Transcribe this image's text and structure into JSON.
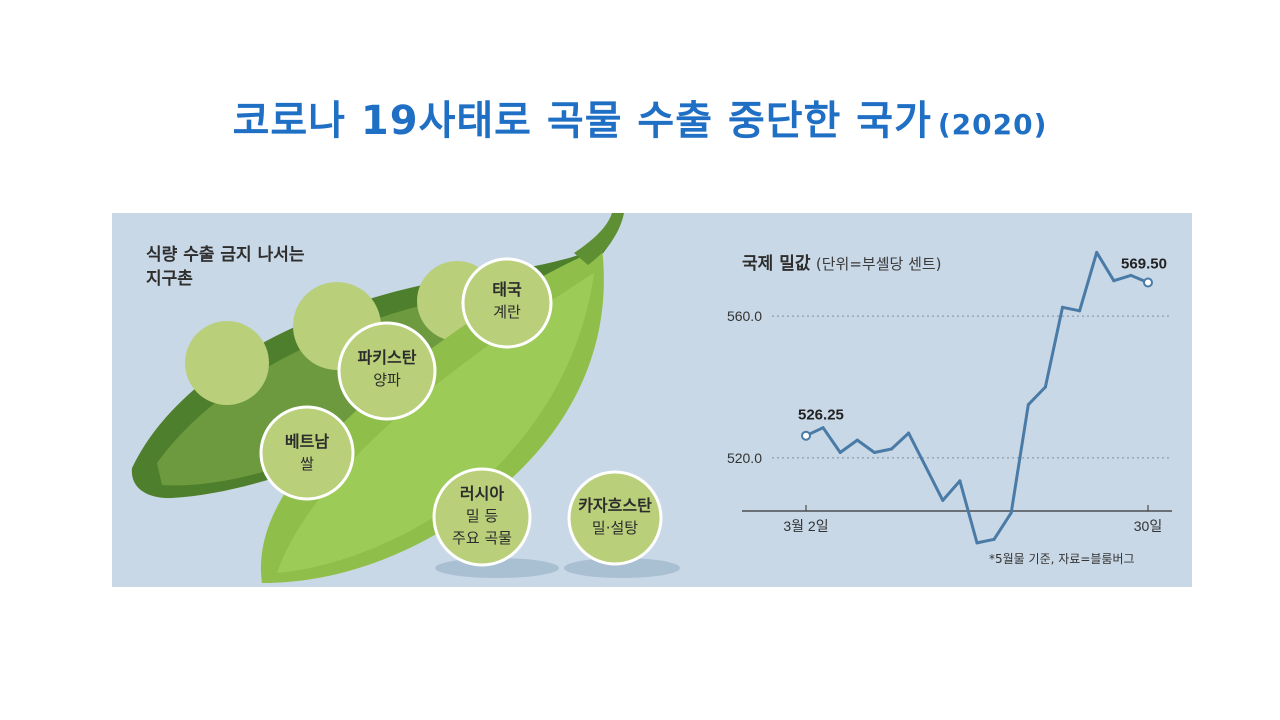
{
  "page": {
    "title": "코로나 19사태로 곡물 수출 중단한 국가",
    "title_year": "(2020)"
  },
  "left": {
    "subtitle_line1": "식량 수출 금지 나서는",
    "subtitle_line2": "지구촌",
    "peas": [
      {
        "country": "태국",
        "item": "계란"
      },
      {
        "country": "파키스탄",
        "item": "양파"
      },
      {
        "country": "베트남",
        "item": "쌀"
      },
      {
        "country": "러시아",
        "item": "밀 등",
        "item2": "주요 곡물"
      },
      {
        "country": "카자흐스탄",
        "item": "밀·설탕"
      }
    ]
  },
  "right": {
    "chart_title": "국제 밀값",
    "chart_unit": "(단위=부셸당 센트)",
    "footnote": "*5월물 기준, 자료=블룸버그"
  },
  "colors": {
    "title": "#1f6fc5",
    "panel_bg": "#c9d8e6",
    "line": "#4a7ba7",
    "pod_light": "#8fbf4a",
    "pod_dark": "#4e7f2c",
    "pea": "#b9cf7a"
  },
  "chart_data": {
    "type": "line",
    "title": "국제 밀값",
    "ylabel": "(단위=부셸당 센트)",
    "ylim": [
      505,
      575
    ],
    "yticks": [
      520.0,
      560.0
    ],
    "ytick_labels": [
      "520.0",
      "560.0"
    ],
    "x_labels": [
      "3월 2일",
      "30일"
    ],
    "start_label": "526.25",
    "end_label": "569.50",
    "values": [
      526.25,
      528.5,
      521.5,
      525.0,
      521.5,
      522.5,
      527.0,
      517.5,
      508.0,
      513.5,
      496.0,
      497.0,
      504.5,
      535.0,
      540.0,
      562.5,
      561.5,
      578.0,
      570.0,
      571.5,
      569.5
    ]
  }
}
